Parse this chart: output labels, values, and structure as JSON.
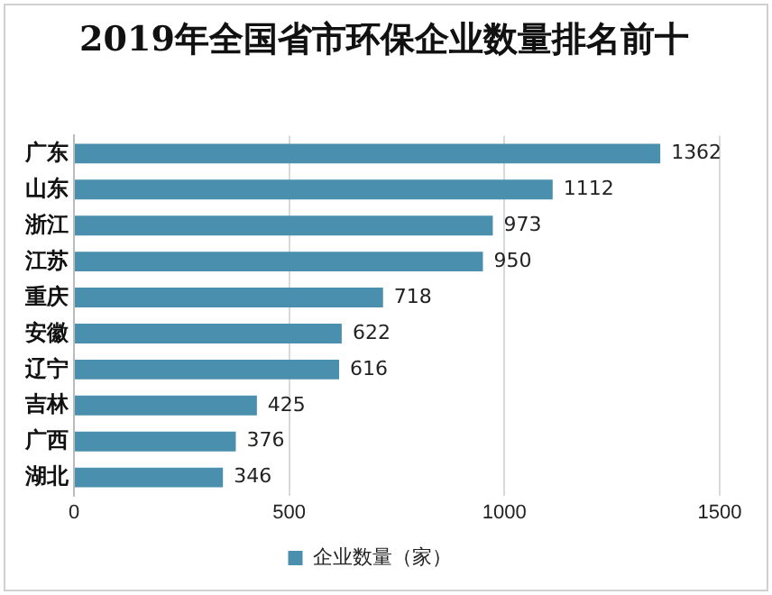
{
  "chart_data": {
    "type": "bar",
    "orientation": "horizontal",
    "title": "2019年全国省市环保企业数量排名前十",
    "categories": [
      "广东",
      "山东",
      "浙江",
      "江苏",
      "重庆",
      "安徽",
      "辽宁",
      "吉林",
      "广西",
      "湖北"
    ],
    "series": [
      {
        "name": "企业数量（家）",
        "color": "#4a8fae",
        "values": [
          1362,
          1112,
          973,
          950,
          718,
          622,
          616,
          425,
          376,
          346
        ]
      }
    ],
    "xlim": [
      0,
      1500
    ],
    "xticks": [
      0,
      500,
      1000,
      1500
    ],
    "grid": "x",
    "legend": "bottom",
    "data_labels": true
  }
}
